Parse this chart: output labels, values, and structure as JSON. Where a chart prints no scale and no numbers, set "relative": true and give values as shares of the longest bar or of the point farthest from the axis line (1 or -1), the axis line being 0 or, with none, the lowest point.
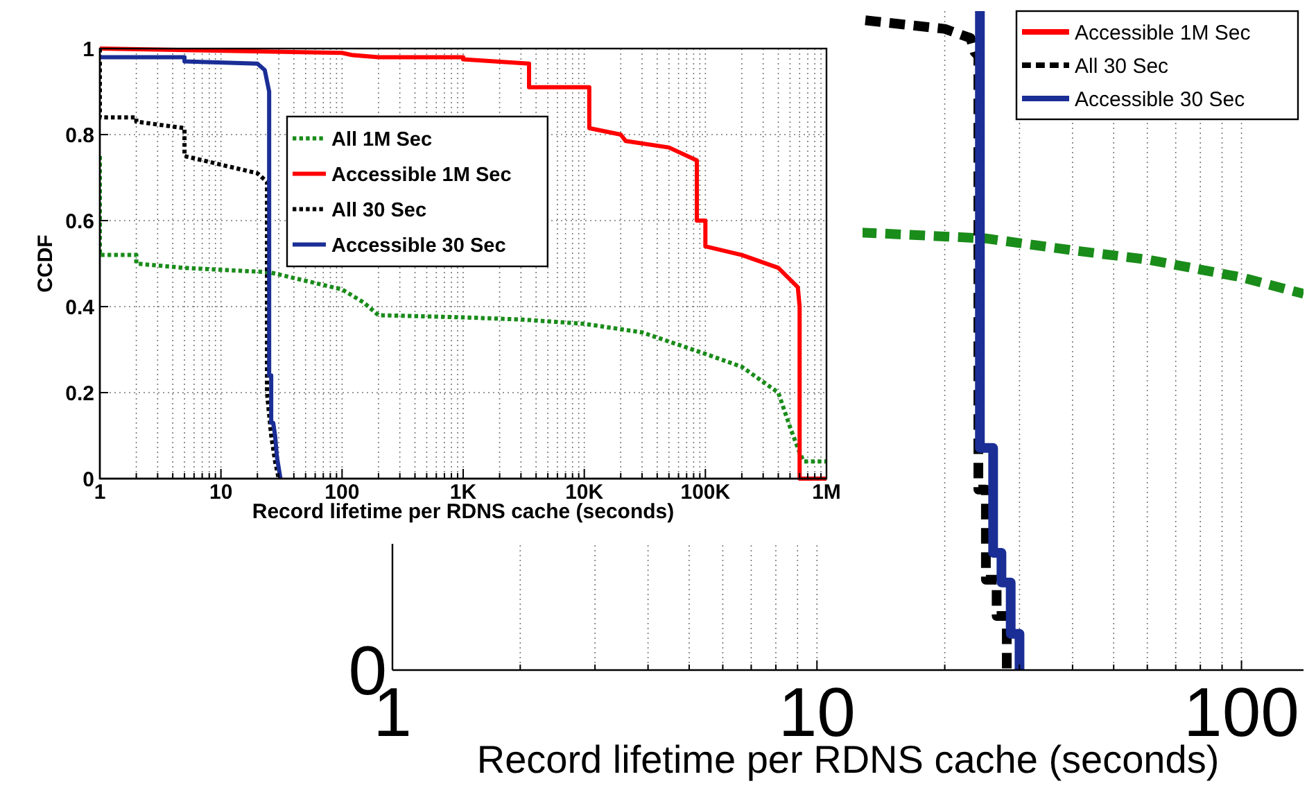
{
  "chart_data": [
    {
      "type": "line",
      "ylabel": "CCDF",
      "xlabel": "Record lifetime per RDNS cache (seconds)",
      "log": "x",
      "xlim": [
        1,
        1000000
      ],
      "ylim": [
        0,
        1
      ],
      "xticks": [
        1,
        {
          "value": 2,
          "label": null
        },
        {
          "value": 3,
          "label": null
        },
        {
          "value": 4,
          "label": null
        },
        {
          "value": 5,
          "label": null
        },
        {
          "value": 6,
          "label": null
        },
        {
          "value": 7,
          "label": null
        },
        {
          "value": 8,
          "label": null
        },
        {
          "value": 9,
          "label": null
        },
        10,
        {
          "value": 20,
          "label": null
        },
        {
          "value": 30,
          "label": null
        },
        {
          "value": 40,
          "label": null
        },
        {
          "value": 50,
          "label": null
        },
        {
          "value": 60,
          "label": null
        },
        {
          "value": 70,
          "label": null
        },
        {
          "value": 80,
          "label": null
        },
        {
          "value": 90,
          "label": null
        },
        100,
        {
          "value": 200,
          "label": null
        },
        {
          "value": 300,
          "label": null
        },
        {
          "value": 400,
          "label": null
        },
        {
          "value": 500,
          "label": null
        },
        {
          "value": 600,
          "label": null
        },
        {
          "value": 700,
          "label": null
        },
        {
          "value": 800,
          "label": null
        },
        {
          "value": 900,
          "label": null
        },
        {
          "value": 1000,
          "label": "1K"
        },
        {
          "value": 2000,
          "label": null
        },
        {
          "value": 3000,
          "label": null
        },
        {
          "value": 4000,
          "label": null
        },
        {
          "value": 5000,
          "label": null
        },
        {
          "value": 6000,
          "label": null
        },
        {
          "value": 7000,
          "label": null
        },
        {
          "value": 8000,
          "label": null
        },
        {
          "value": 9000,
          "label": null
        },
        {
          "value": 10000,
          "label": "10K"
        },
        {
          "value": 20000,
          "label": null
        },
        {
          "value": 30000,
          "label": null
        },
        {
          "value": 40000,
          "label": null
        },
        {
          "value": 50000,
          "label": null
        },
        {
          "value": 60000,
          "label": null
        },
        {
          "value": 70000,
          "label": null
        },
        {
          "value": 80000,
          "label": null
        },
        {
          "value": 90000,
          "label": null
        },
        {
          "value": 100000,
          "label": "100K"
        },
        {
          "value": 200000,
          "label": null
        },
        {
          "value": 300000,
          "label": null
        },
        {
          "value": 400000,
          "label": null
        },
        {
          "value": 500000,
          "label": null
        },
        {
          "value": 600000,
          "label": null
        },
        {
          "value": 700000,
          "label": null
        },
        {
          "value": 800000,
          "label": null
        },
        {
          "value": 900000,
          "label": null
        },
        {
          "value": 1000000,
          "label": "1M"
        }
      ],
      "yticks": [
        0,
        0.2,
        0.4,
        0.6,
        0.8,
        1
      ],
      "grid": true,
      "legend": "top left",
      "marker": "none",
      "series": [
        {
          "name": "All 1M Sec",
          "color": "#1a8c1a",
          "line_style": "dotted",
          "x": [
            1,
            1,
            2,
            2,
            5,
            25,
            50,
            100,
            150,
            200,
            1000,
            3000,
            10000,
            30000,
            100000,
            200000,
            400000,
            500000,
            600000,
            650000,
            1000000
          ],
          "values": [
            0.75,
            0.52,
            0.52,
            0.5,
            0.49,
            0.48,
            0.46,
            0.44,
            0.41,
            0.38,
            0.375,
            0.37,
            0.36,
            0.34,
            0.29,
            0.26,
            0.2,
            0.12,
            0.06,
            0.04,
            0.04
          ]
        },
        {
          "name": "Accessible 1M Sec",
          "color": "#ff0000",
          "line_style": "solid",
          "x": [
            1,
            100,
            120,
            200,
            1000,
            1000,
            3500,
            3500,
            11000,
            11000,
            20000,
            22000,
            50000,
            85000,
            85000,
            100000,
            100000,
            200000,
            400000,
            580000,
            600000,
            600000,
            1000000
          ],
          "values": [
            1,
            0.99,
            0.985,
            0.98,
            0.98,
            0.975,
            0.965,
            0.91,
            0.91,
            0.815,
            0.8,
            0.785,
            0.77,
            0.74,
            0.6,
            0.6,
            0.54,
            0.52,
            0.49,
            0.445,
            0.4,
            0,
            0
          ]
        },
        {
          "name": "All 30 Sec",
          "color": "#000000",
          "line_style": "dotted",
          "x": [
            1,
            1,
            2,
            2,
            5,
            5,
            10,
            20,
            24,
            24,
            26,
            28,
            30
          ],
          "values": [
            1,
            0.84,
            0.84,
            0.83,
            0.815,
            0.75,
            0.73,
            0.71,
            0.69,
            0.2,
            0.1,
            0.04,
            0
          ]
        },
        {
          "name": "Accessible 30 Sec",
          "color": "#1a2e96",
          "line_style": "solid",
          "x": [
            1,
            5,
            5,
            20,
            23,
            25,
            25,
            26,
            26,
            27,
            28,
            29,
            31
          ],
          "values": [
            0.98,
            0.98,
            0.97,
            0.965,
            0.95,
            0.9,
            0.24,
            0.24,
            0.13,
            0.13,
            0.1,
            0.05,
            0
          ]
        }
      ]
    },
    {
      "type": "line",
      "xlabel": "Record lifetime per RDNS cache (seconds)",
      "log": "x",
      "xlim": [
        1,
        140
      ],
      "relative": true,
      "annotations": [
        "0"
      ],
      "xticks": [
        1,
        {
          "value": 2,
          "label": null
        },
        {
          "value": 3,
          "label": null
        },
        {
          "value": 4,
          "label": null
        },
        {
          "value": 5,
          "label": null
        },
        {
          "value": 6,
          "label": null
        },
        {
          "value": 7,
          "label": null
        },
        {
          "value": 8,
          "label": null
        },
        {
          "value": 9,
          "label": null
        },
        10,
        {
          "value": 20,
          "label": null
        },
        {
          "value": 30,
          "label": null
        },
        {
          "value": 40,
          "label": null
        },
        {
          "value": 50,
          "label": null
        },
        {
          "value": 60,
          "label": null
        },
        {
          "value": 70,
          "label": null
        },
        {
          "value": 80,
          "label": null
        },
        {
          "value": 90,
          "label": null
        },
        100
      ],
      "grid": "x",
      "legend": "top right",
      "marker": "none",
      "series": [
        {
          "color": "#1a8c1a",
          "line_style": "dashed",
          "x": [
            12.7,
            20,
            25,
            40,
            60,
            100,
            140
          ],
          "values": [
            0.664,
            0.658,
            0.655,
            0.637,
            0.623,
            0.596,
            0.571
          ]
        },
        {
          "name": "Accessible 1M Sec",
          "color": "#ff0000",
          "line_style": "solid"
        },
        {
          "name": "All 30 Sec",
          "color": "#000000",
          "line_style": "dashed",
          "x": [
            13,
            20,
            23,
            23.5,
            24,
            24,
            25,
            25,
            26.5,
            26.5,
            28,
            28
          ],
          "values": [
            0.986,
            0.973,
            0.959,
            0.938,
            0.932,
            0.274,
            0.274,
            0.137,
            0.137,
            0.082,
            0.082,
            0
          ]
        },
        {
          "name": "Accessible 30 Sec",
          "color": "#1a2e96",
          "line_style": "solid",
          "x": [
            24.2,
            24.2,
            26,
            26,
            27.2,
            27.2,
            28.6,
            28.6,
            30,
            30
          ],
          "values": [
            1,
            0.337,
            0.337,
            0.178,
            0.178,
            0.133,
            0.133,
            0.055,
            0.055,
            0
          ]
        }
      ]
    }
  ]
}
